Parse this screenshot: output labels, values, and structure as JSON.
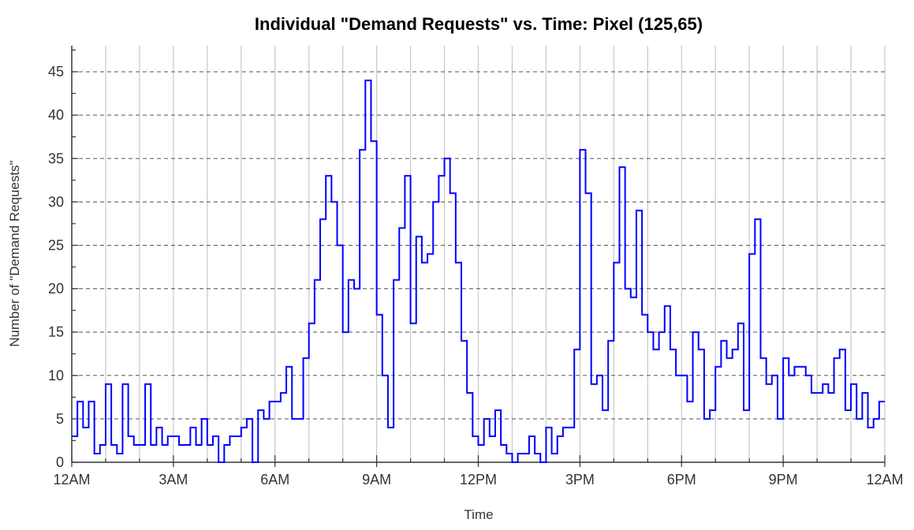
{
  "chart_data": {
    "type": "line",
    "step": true,
    "title": "Individual \"Demand Requests\" vs. Time: Pixel (125,65)",
    "xlabel": "Time",
    "ylabel": "Number of \"Demand Requests\"",
    "x_unit": "hours since 12AM",
    "xlim": [
      0,
      24
    ],
    "ylim": [
      0,
      48
    ],
    "x_ticks": [
      {
        "value": 0,
        "label": "12AM"
      },
      {
        "value": 3,
        "label": "3AM"
      },
      {
        "value": 6,
        "label": "6AM"
      },
      {
        "value": 9,
        "label": "9AM"
      },
      {
        "value": 12,
        "label": "12PM"
      },
      {
        "value": 15,
        "label": "3PM"
      },
      {
        "value": 18,
        "label": "6PM"
      },
      {
        "value": 21,
        "label": "9PM"
      },
      {
        "value": 24,
        "label": "12AM"
      }
    ],
    "y_ticks": [
      0,
      5,
      10,
      15,
      20,
      25,
      30,
      35,
      40,
      45
    ],
    "x_minor_grid_step": 1,
    "grid": true,
    "line_color": "#0000ff",
    "series": [
      {
        "interval_minutes": 10,
        "values": [
          3,
          7,
          4,
          7,
          1,
          2,
          9,
          2,
          1,
          9,
          3,
          2,
          2,
          9,
          2,
          4,
          2,
          3,
          3,
          2,
          2,
          4,
          2,
          5,
          2,
          3,
          0,
          2,
          3,
          3,
          4,
          5,
          0,
          6,
          5,
          7,
          7,
          8,
          11,
          5,
          5,
          12,
          16,
          21,
          28,
          33,
          30,
          25,
          15,
          21,
          20,
          36,
          44,
          37,
          17,
          10,
          4,
          21,
          27,
          33,
          16,
          26,
          23,
          24,
          30,
          33,
          35,
          31,
          23,
          14,
          8,
          3,
          2,
          5,
          3,
          6,
          2,
          1,
          0,
          1,
          1,
          3,
          1,
          0,
          4,
          1,
          3,
          4,
          4,
          13,
          36,
          31,
          9,
          10,
          6,
          14,
          23,
          34,
          20,
          19,
          29,
          17,
          15,
          13,
          15,
          18,
          13,
          10,
          10,
          7,
          15,
          13,
          5,
          6,
          11,
          14,
          12,
          13,
          16,
          6,
          24,
          28,
          12,
          9,
          10,
          5,
          12,
          10,
          11,
          11,
          10,
          8,
          8,
          9,
          8,
          12,
          13,
          6,
          9,
          5,
          8,
          4,
          5,
          7
        ]
      }
    ]
  }
}
